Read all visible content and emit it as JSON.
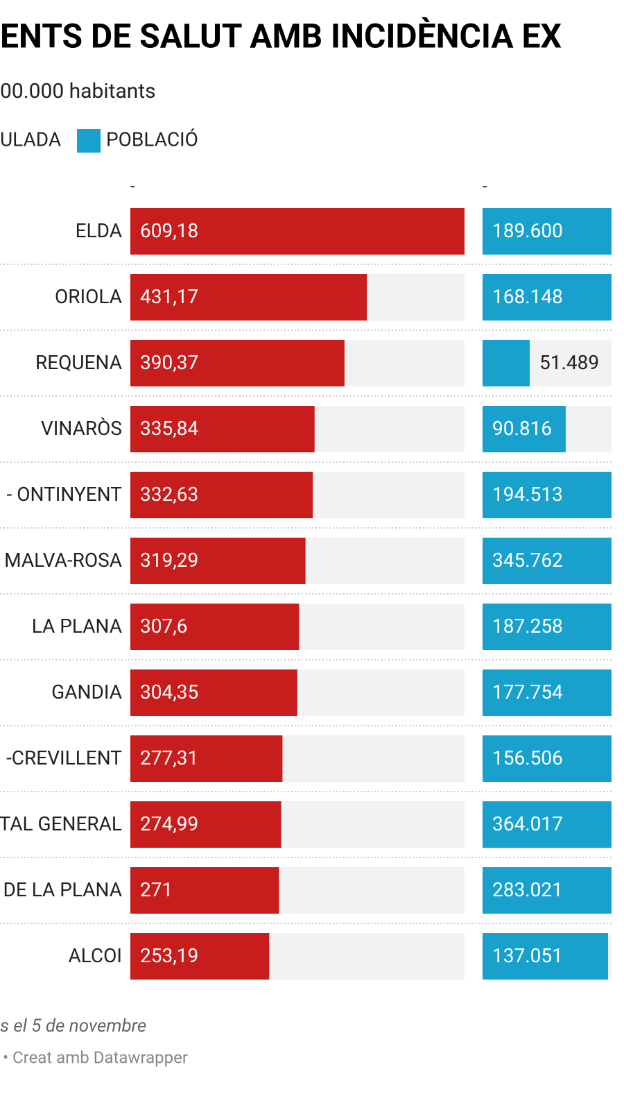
{
  "chart_data": {
    "type": "bar",
    "title": "ENTS DE SALUT AMB INCIDÈNCIA EX",
    "subtitle": "00.000 habitants",
    "column_headers": [
      "-",
      "-"
    ],
    "categories": [
      "ELDA",
      "ORIOLA",
      "REQUENA",
      "VINARÒS",
      "- ONTINYENT",
      "MALVA-ROSA",
      "LA PLANA",
      "GANDIA",
      "-CREVILLENT",
      "TAL GENERAL",
      "DE LA PLANA",
      "ALCOI"
    ],
    "series": [
      {
        "name": "ULADA",
        "color": "#c71e1d",
        "values": [
          609.18,
          431.17,
          390.37,
          335.84,
          332.63,
          319.29,
          307.6,
          304.35,
          277.31,
          274.99,
          271,
          253.19
        ],
        "value_labels": [
          "609,18",
          "431,17",
          "390,37",
          "335,84",
          "332,63",
          "319,29",
          "307,6",
          "304,35",
          "277,31",
          "274,99",
          "271",
          "253,19"
        ],
        "xlim": [
          0,
          609.18
        ]
      },
      {
        "name": "POBLACIÓ",
        "color": "#18a1cd",
        "values": [
          189600,
          168148,
          51489,
          90816,
          194513,
          345762,
          187258,
          177754,
          156506,
          364017,
          283021,
          137051
        ],
        "value_labels": [
          "189.600",
          "168.148",
          "51.489",
          "90.816",
          "194.513",
          "345.762",
          "187.258",
          "177.754",
          "156.506",
          "364.017",
          "283.021",
          "137.051"
        ],
        "xlim": [
          0,
          365000
        ]
      }
    ],
    "notes": "s el 5 de novembre",
    "credit": "• Creat amb Datawrapper"
  }
}
